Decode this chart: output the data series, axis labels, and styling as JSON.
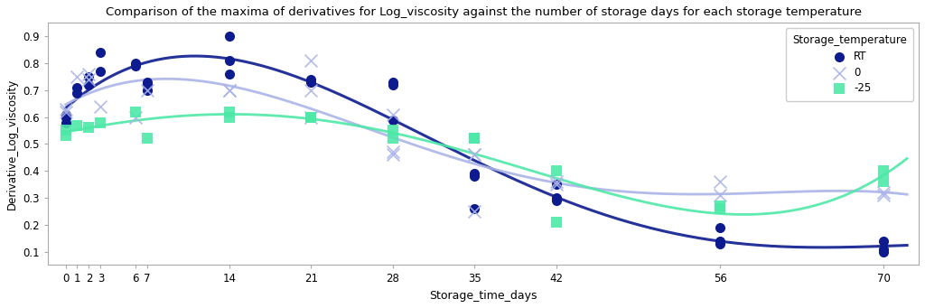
{
  "title": "Comparison of the maxima of derivatives for Log_viscosity against the number of storage days for each storage temperature",
  "xlabel": "Storage_time_days",
  "ylabel": "Derivative_Log_viscosity",
  "legend_title": "Storage_temperature",
  "legend_labels": [
    "RT",
    "0",
    "-25"
  ],
  "RT": {
    "x": [
      0,
      0,
      0,
      1,
      1,
      2,
      2,
      3,
      3,
      6,
      6,
      7,
      7,
      7,
      14,
      14,
      14,
      21,
      21,
      28,
      28,
      28,
      35,
      35,
      35,
      42,
      42,
      42,
      56,
      56,
      56,
      70,
      70,
      70
    ],
    "y": [
      0.6,
      0.58,
      0.61,
      0.69,
      0.71,
      0.72,
      0.75,
      0.77,
      0.84,
      0.79,
      0.8,
      0.7,
      0.73,
      0.72,
      0.9,
      0.81,
      0.76,
      0.74,
      0.73,
      0.73,
      0.72,
      0.59,
      0.39,
      0.38,
      0.26,
      0.35,
      0.3,
      0.29,
      0.19,
      0.14,
      0.13,
      0.14,
      0.11,
      0.1
    ],
    "color": "#0d1b8e",
    "marker": "o",
    "markersize": 4
  },
  "zero": {
    "x": [
      0,
      0,
      1,
      2,
      2,
      3,
      6,
      7,
      14,
      14,
      21,
      21,
      21,
      28,
      28,
      28,
      35,
      35,
      35,
      42,
      42,
      56,
      56,
      70,
      70
    ],
    "y": [
      0.63,
      0.62,
      0.75,
      0.74,
      0.76,
      0.64,
      0.6,
      0.7,
      0.7,
      0.7,
      0.81,
      0.7,
      0.6,
      0.61,
      0.46,
      0.47,
      0.46,
      0.46,
      0.25,
      0.35,
      0.36,
      0.31,
      0.36,
      0.32,
      0.31
    ],
    "color": "#aab4e8",
    "marker": "x",
    "markersize": 5
  },
  "minus25": {
    "x": [
      0,
      0,
      1,
      2,
      3,
      6,
      7,
      14,
      14,
      21,
      21,
      28,
      28,
      35,
      35,
      42,
      42,
      56,
      56,
      70,
      70
    ],
    "y": [
      0.55,
      0.53,
      0.57,
      0.56,
      0.58,
      0.62,
      0.52,
      0.62,
      0.6,
      0.6,
      0.6,
      0.55,
      0.52,
      0.52,
      0.52,
      0.4,
      0.21,
      0.27,
      0.26,
      0.4,
      0.36
    ],
    "color": "#4de8a8",
    "marker": "s",
    "markersize": 4
  },
  "xticks": [
    0,
    1,
    2,
    3,
    6,
    7,
    14,
    21,
    28,
    35,
    42,
    56,
    70
  ],
  "xtick_labels": [
    "0",
    "1",
    "2",
    "3",
    "6",
    "7",
    "14",
    "21",
    "28",
    "35",
    "42",
    "56",
    "70"
  ],
  "ylim": [
    0.05,
    0.95
  ],
  "yticks": [
    0.1,
    0.2,
    0.3,
    0.4,
    0.5,
    0.6,
    0.7,
    0.8,
    0.9
  ],
  "figsize": [
    10.24,
    3.41
  ],
  "dpi": 100,
  "background_color": "#ffffff",
  "curve_RT_color": "#0d1b8e",
  "curve_zero_color": "#aab4e8",
  "curve_minus25_color": "#4de8a8"
}
